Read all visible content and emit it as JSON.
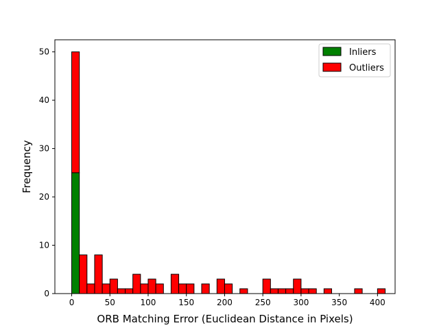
{
  "chart_data": {
    "type": "bar",
    "subtype": "stacked-histogram",
    "title": "",
    "xlabel": "ORB Matching Error (Euclidean Distance in Pixels)",
    "ylabel": "Frequency",
    "xlim": [
      -22,
      423
    ],
    "ylim": [
      0,
      52.5
    ],
    "xticks": [
      0,
      50,
      100,
      150,
      200,
      250,
      300,
      350,
      400
    ],
    "yticks": [
      0,
      10,
      20,
      30,
      40,
      50
    ],
    "grid": false,
    "legend": {
      "placement": "top-right",
      "entries": [
        "Inliers",
        "Outliers"
      ]
    },
    "bins": {
      "start": 0,
      "width": 10,
      "count": 41
    },
    "series": [
      {
        "name": "Inliers",
        "color": "#008000",
        "values": [
          25,
          0,
          0,
          0,
          0,
          0,
          0,
          0,
          0,
          0,
          0,
          0,
          0,
          0,
          0,
          0,
          0,
          0,
          0,
          0,
          0,
          0,
          0,
          0,
          0,
          0,
          0,
          0,
          0,
          0,
          0,
          0,
          0,
          0,
          0,
          0,
          0,
          0,
          0,
          0,
          0
        ]
      },
      {
        "name": "Outliers",
        "color": "#ff0000",
        "values": [
          25,
          8,
          2,
          8,
          2,
          3,
          1,
          1,
          4,
          2,
          3,
          2,
          0,
          4,
          2,
          2,
          0,
          2,
          0,
          3,
          2,
          0,
          1,
          0,
          0,
          3,
          1,
          1,
          1,
          3,
          1,
          1,
          0,
          1,
          0,
          0,
          0,
          1,
          0,
          0,
          1
        ]
      }
    ]
  }
}
